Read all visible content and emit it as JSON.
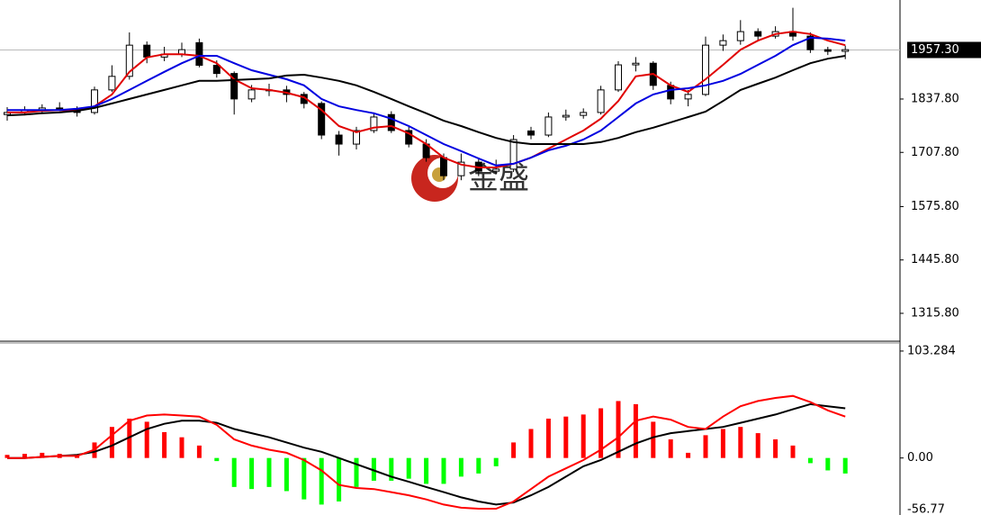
{
  "chart_data": [
    {
      "type": "candlestick",
      "watermark": "金盛",
      "open": [
        1800,
        1805,
        1811,
        1816,
        1814,
        1805,
        1860,
        1893,
        1969,
        1940,
        1947,
        1975,
        1920,
        1900,
        1838,
        1860,
        1860,
        1849,
        1827,
        1750,
        1728,
        1761,
        1800,
        1761,
        1728,
        1695,
        1651,
        1684,
        1662,
        1667,
        1760,
        1750,
        1794,
        1798,
        1805,
        1860,
        1921,
        1925,
        1871,
        1838,
        1849,
        1969,
        1980,
        2002,
        1991,
        2002,
        1991,
        1958,
        1954
      ],
      "high": [
        1818,
        1820,
        1825,
        1830,
        1820,
        1868,
        1920,
        2000,
        1978,
        1965,
        1975,
        1985,
        1932,
        1905,
        1872,
        1875,
        1870,
        1855,
        1832,
        1760,
        1770,
        1805,
        1808,
        1770,
        1740,
        1705,
        1705,
        1695,
        1690,
        1750,
        1770,
        1805,
        1812,
        1815,
        1870,
        1930,
        1940,
        1930,
        1880,
        1860,
        1990,
        1995,
        2030,
        2010,
        2015,
        2060,
        2000,
        1965,
        1968
      ],
      "low": [
        1785,
        1798,
        1805,
        1808,
        1795,
        1800,
        1855,
        1885,
        1925,
        1930,
        1940,
        1915,
        1890,
        1800,
        1830,
        1845,
        1830,
        1815,
        1740,
        1700,
        1715,
        1755,
        1755,
        1720,
        1685,
        1640,
        1640,
        1650,
        1655,
        1660,
        1740,
        1745,
        1785,
        1790,
        1800,
        1855,
        1905,
        1860,
        1825,
        1820,
        1845,
        1955,
        1970,
        1980,
        1985,
        1980,
        1950,
        1945,
        1935
      ],
      "close": [
        1805,
        1811,
        1816,
        1814,
        1805,
        1860,
        1893,
        1969,
        1940,
        1947,
        1958,
        1920,
        1900,
        1838,
        1860,
        1858,
        1849,
        1827,
        1750,
        1728,
        1761,
        1794,
        1761,
        1728,
        1695,
        1651,
        1684,
        1662,
        1667,
        1739,
        1750,
        1794,
        1798,
        1805,
        1860,
        1921,
        1925,
        1871,
        1838,
        1849,
        1969,
        1980,
        2002,
        1991,
        2002,
        1991,
        1958,
        1954,
        1958
      ],
      "series": [
        {
          "color": "#e00000",
          "values": [
            1805,
            1805,
            1809,
            1811,
            1809,
            1820,
            1849,
            1904,
            1939,
            1947,
            1947,
            1943,
            1925,
            1886,
            1864,
            1860,
            1853,
            1842,
            1811,
            1772,
            1757,
            1768,
            1772,
            1754,
            1728,
            1695,
            1678,
            1671,
            1671,
            1680,
            1695,
            1717,
            1739,
            1761,
            1790,
            1833,
            1893,
            1899,
            1871,
            1855,
            1886,
            1921,
            1958,
            1980,
            1996,
            2002,
            1996,
            1980,
            1969
          ]
        },
        {
          "color": "#0000e0",
          "values": [
            1811,
            1811,
            1811,
            1811,
            1814,
            1820,
            1838,
            1860,
            1882,
            1904,
            1925,
            1943,
            1943,
            1925,
            1908,
            1897,
            1886,
            1871,
            1838,
            1820,
            1811,
            1803,
            1790,
            1772,
            1750,
            1728,
            1711,
            1693,
            1676,
            1680,
            1695,
            1713,
            1724,
            1739,
            1761,
            1794,
            1827,
            1849,
            1860,
            1864,
            1871,
            1882,
            1899,
            1921,
            1943,
            1969,
            1987,
            1985,
            1980
          ]
        },
        {
          "color": "#000000",
          "values": [
            1798,
            1800,
            1803,
            1805,
            1809,
            1816,
            1827,
            1838,
            1849,
            1860,
            1871,
            1882,
            1882,
            1884,
            1886,
            1888,
            1895,
            1897,
            1890,
            1882,
            1871,
            1855,
            1838,
            1820,
            1803,
            1785,
            1772,
            1757,
            1743,
            1733,
            1728,
            1728,
            1728,
            1728,
            1733,
            1743,
            1757,
            1768,
            1781,
            1794,
            1807,
            1833,
            1860,
            1875,
            1890,
            1908,
            1925,
            1936,
            1943
          ]
        }
      ],
      "current_price": {
        "value": 1957.3,
        "label": "1957.30"
      },
      "ylim": [
        1250,
        2079
      ],
      "yticks": [
        {
          "value": 1837.8,
          "label": "1837.80"
        },
        {
          "value": 1707.8,
          "label": "1707.80"
        },
        {
          "value": 1575.8,
          "label": "1575.80"
        },
        {
          "value": 1445.8,
          "label": "1445.80"
        },
        {
          "value": 1315.8,
          "label": "1315.80"
        }
      ]
    },
    {
      "type": "macd",
      "histogram": {
        "up_color": "#ff0000",
        "down_color": "#00ff00",
        "values": [
          3,
          4,
          5,
          4,
          3,
          15,
          30,
          38,
          35,
          25,
          20,
          12,
          -3,
          -28,
          -30,
          -28,
          -32,
          -40,
          -45,
          -42,
          -28,
          -22,
          -22,
          -20,
          -25,
          -25,
          -18,
          -15,
          -8,
          15,
          28,
          38,
          40,
          42,
          48,
          55,
          52,
          35,
          18,
          5,
          22,
          28,
          30,
          24,
          18,
          12,
          -5,
          -12,
          -15
        ]
      },
      "series": [
        {
          "color": "#000000",
          "values": [
            0,
            0,
            1,
            2,
            3,
            6,
            12,
            20,
            28,
            33,
            36,
            36,
            34,
            28,
            24,
            20,
            15,
            10,
            6,
            0,
            -6,
            -12,
            -18,
            -23,
            -28,
            -33,
            -38,
            -42,
            -45,
            -43,
            -36,
            -28,
            -18,
            -8,
            -2,
            6,
            14,
            20,
            24,
            26,
            28,
            30,
            34,
            38,
            42,
            47,
            52,
            50,
            48
          ]
        },
        {
          "color": "#ff0000",
          "values": [
            0,
            0,
            1,
            2,
            2,
            8,
            22,
            36,
            41,
            42,
            41,
            40,
            32,
            18,
            12,
            8,
            5,
            -2,
            -12,
            -26,
            -29,
            -30,
            -33,
            -36,
            -40,
            -45,
            -48,
            -49,
            -49,
            -42,
            -30,
            -18,
            -10,
            -2,
            8,
            20,
            36,
            40,
            37,
            30,
            28,
            40,
            50,
            55,
            58,
            60,
            54,
            46,
            40
          ]
        }
      ],
      "ylim": [
        -55.08,
        110.17
      ],
      "yticks": [
        103.284,
        {
          "value": 0,
          "label": "0.00"
        },
        -56.77
      ]
    }
  ]
}
